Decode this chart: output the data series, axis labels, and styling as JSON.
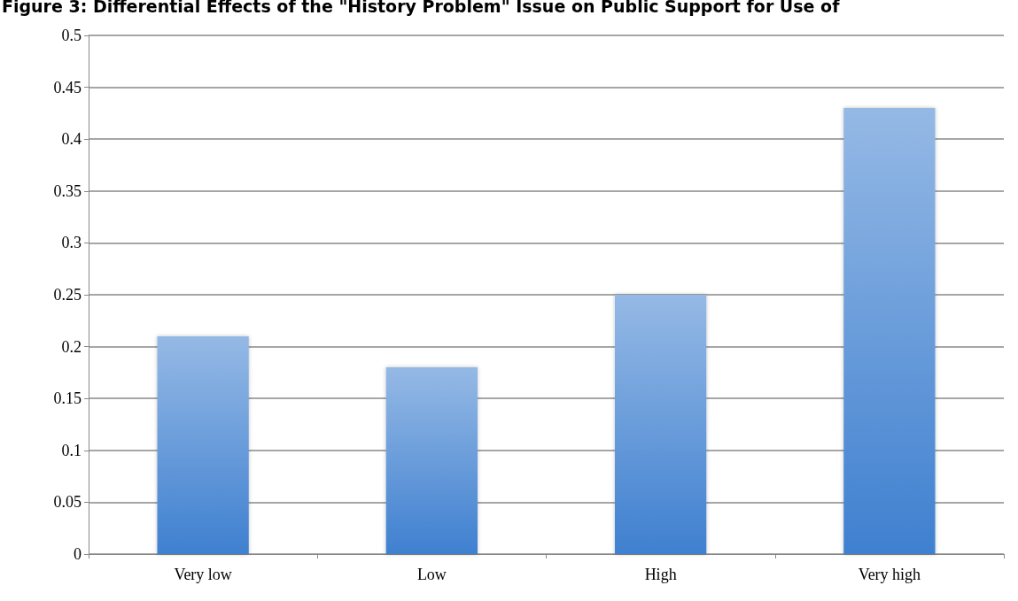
{
  "chart_data": {
    "type": "bar",
    "title": "Figure 3: Differential Effects of the \"History Problem\" Issue on Public Support for Use of",
    "categories": [
      "Very low",
      "Low",
      "High",
      "Very high"
    ],
    "values": [
      0.21,
      0.18,
      0.25,
      0.43
    ],
    "color": "#3f80d0",
    "ylim": [
      0,
      0.5
    ],
    "yticks": [
      0,
      0.05,
      0.1,
      0.15,
      0.2,
      0.25,
      0.3,
      0.35,
      0.4,
      0.45,
      0.5
    ],
    "grid": "y"
  }
}
